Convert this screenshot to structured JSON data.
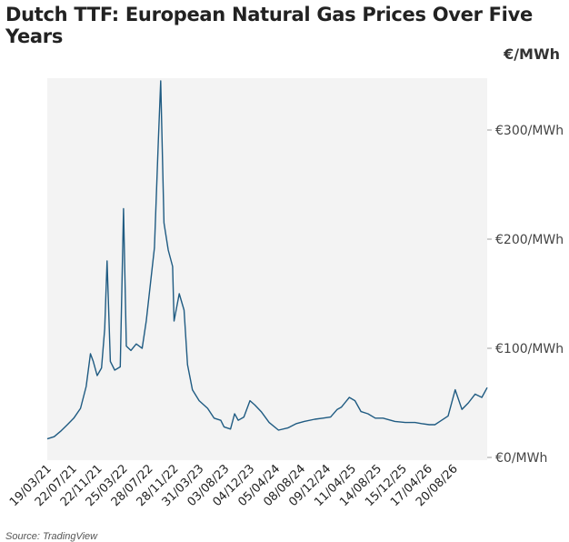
{
  "chart_data": {
    "type": "line",
    "title": "Dutch TTF: European Natural Gas Prices Over Five Years",
    "unit_label": "€/MWh",
    "source": "Source: TradingView",
    "ylim": [
      0,
      345
    ],
    "y_ticks": [
      {
        "value": 0,
        "label": "€0/MWh"
      },
      {
        "value": 100,
        "label": "€100/MWh"
      },
      {
        "value": 200,
        "label": "€200/MWh"
      },
      {
        "value": 300,
        "label": "€300/MWh"
      }
    ],
    "x_range": [
      "2021-03-19",
      "2026-10-15"
    ],
    "x_ticks": [
      "19/03/21",
      "22/07/21",
      "22/11/21",
      "25/03/22",
      "28/07/22",
      "28/11/22",
      "31/03/23",
      "03/08/23",
      "04/12/23",
      "05/04/24",
      "08/08/24",
      "09/12/24",
      "11/04/25",
      "14/08/25",
      "15/12/25",
      "17/04/26",
      "20/08/26"
    ],
    "line_color": "#1f5b82",
    "plot_background": "#f3f3f3",
    "grid": false,
    "series": [
      {
        "name": "",
        "x": [
          "2021-03-19",
          "2021-04-20",
          "2021-05-20",
          "2021-06-20",
          "2021-07-20",
          "2021-08-20",
          "2021-09-15",
          "2021-10-05",
          "2021-10-18",
          "2021-11-05",
          "2021-11-25",
          "2021-12-10",
          "2021-12-21",
          "2022-01-05",
          "2022-01-25",
          "2022-02-20",
          "2022-03-07",
          "2022-03-20",
          "2022-04-10",
          "2022-05-05",
          "2022-06-01",
          "2022-06-20",
          "2022-07-10",
          "2022-07-28",
          "2022-08-15",
          "2022-08-26",
          "2022-09-10",
          "2022-09-30",
          "2022-10-20",
          "2022-10-27",
          "2022-11-20",
          "2022-12-12",
          "2022-12-28",
          "2023-01-20",
          "2023-02-20",
          "2023-03-31",
          "2023-04-30",
          "2023-05-31",
          "2023-06-15",
          "2023-07-15",
          "2023-08-03",
          "2023-08-20",
          "2023-09-15",
          "2023-10-13",
          "2023-11-05",
          "2023-12-04",
          "2024-01-10",
          "2024-02-22",
          "2024-04-05",
          "2024-05-15",
          "2024-06-20",
          "2024-08-08",
          "2024-09-15",
          "2024-10-20",
          "2024-11-20",
          "2024-12-09",
          "2025-01-15",
          "2025-02-10",
          "2025-03-10",
          "2025-04-11",
          "2025-05-15",
          "2025-06-20",
          "2025-08-14",
          "2025-10-01",
          "2025-11-15",
          "2025-12-15",
          "2026-01-20",
          "2026-02-15",
          "2026-03-10",
          "2026-04-17",
          "2026-05-20",
          "2026-06-20",
          "2026-07-20",
          "2026-08-20",
          "2026-09-20",
          "2026-10-15"
        ],
        "y": [
          17,
          19,
          24,
          30,
          36,
          45,
          65,
          95,
          88,
          75,
          82,
          118,
          180,
          88,
          80,
          83,
          228,
          102,
          98,
          104,
          100,
          125,
          160,
          192,
          290,
          345,
          215,
          190,
          175,
          125,
          150,
          135,
          85,
          62,
          52,
          45,
          36,
          34,
          28,
          26,
          40,
          34,
          37,
          52,
          48,
          42,
          32,
          25,
          27,
          31,
          33,
          35,
          36,
          37,
          44,
          46,
          55,
          52,
          42,
          40,
          36,
          36,
          33,
          32,
          32,
          31,
          30,
          30,
          33,
          38,
          62,
          44,
          50,
          58,
          55,
          64
        ]
      }
    ]
  }
}
